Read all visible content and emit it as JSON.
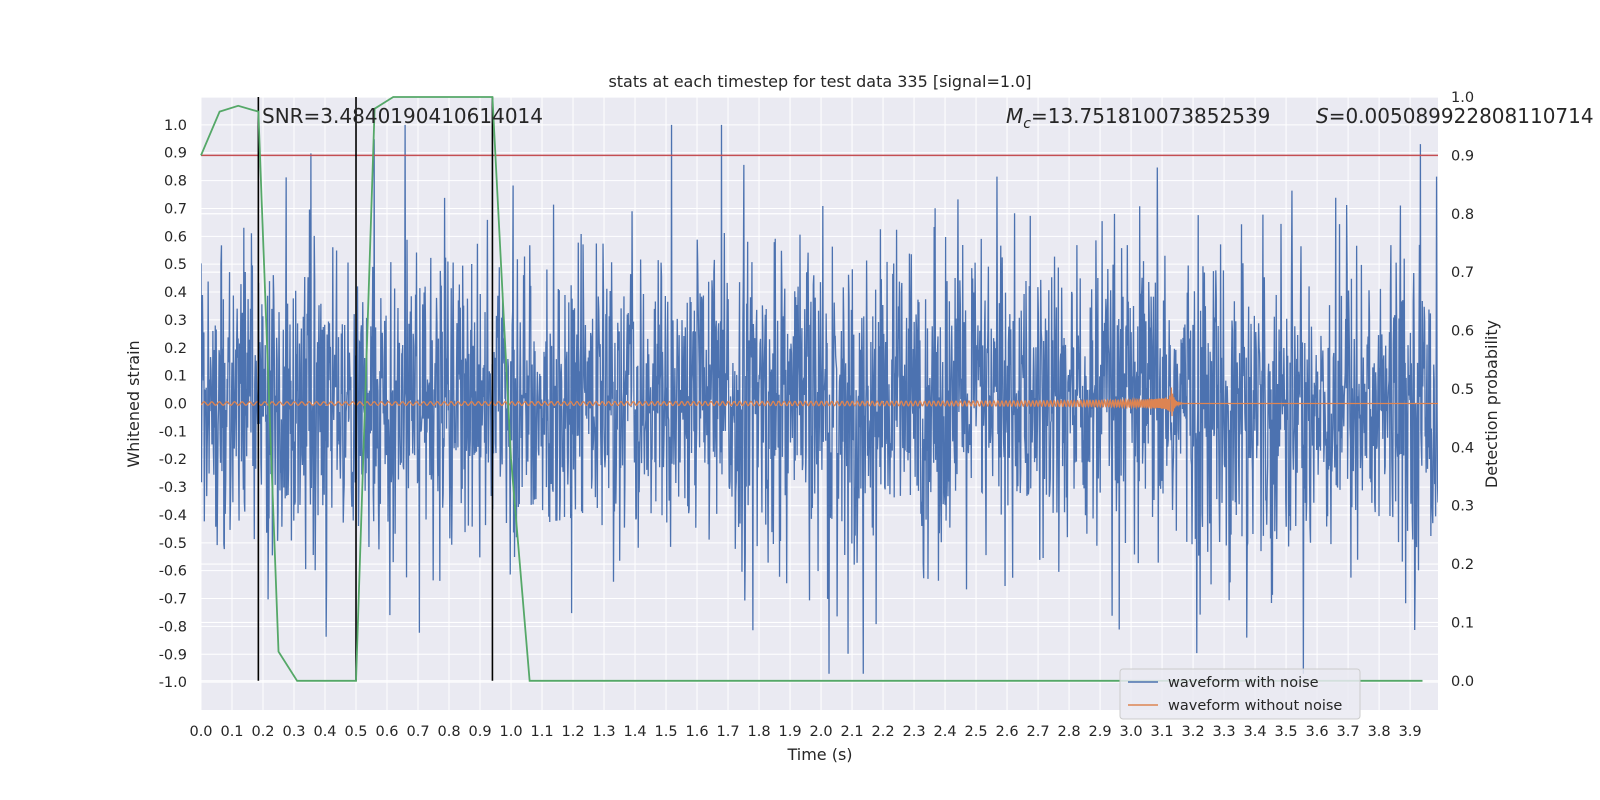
{
  "chart_data": {
    "type": "line",
    "title": "stats at each timestep for test data 335 [signal=1.0]",
    "xlabel": "Time (s)",
    "ylabel_left": "Whitened strain",
    "ylabel_right": "Detection probability",
    "xlim": [
      0.0,
      3.99
    ],
    "ylim_left": [
      -1.1,
      1.1
    ],
    "ylim_right": [
      -0.05,
      1.0
    ],
    "x_ticks": [
      "0.0",
      "0.1",
      "0.2",
      "0.3",
      "0.4",
      "0.5",
      "0.6",
      "0.7",
      "0.8",
      "0.9",
      "1.0",
      "1.1",
      "1.2",
      "1.3",
      "1.4",
      "1.5",
      "1.6",
      "1.7",
      "1.8",
      "1.9",
      "2.0",
      "2.1",
      "2.2",
      "2.3",
      "2.4",
      "2.5",
      "2.6",
      "2.7",
      "2.8",
      "2.9",
      "3.0",
      "3.1",
      "3.2",
      "3.3",
      "3.4",
      "3.5",
      "3.6",
      "3.7",
      "3.8",
      "3.9"
    ],
    "y_ticks_left": [
      "1.0",
      "0.9",
      "0.8",
      "0.7",
      "0.6",
      "0.5",
      "0.4",
      "0.3",
      "0.2",
      "0.1",
      "0.0",
      "-0.1",
      "-0.2",
      "-0.3",
      "-0.4",
      "-0.5",
      "-0.6",
      "-0.7",
      "-0.8",
      "-0.9",
      "-1.0"
    ],
    "y_ticks_right": [
      "1.0",
      "0.9",
      "0.8",
      "0.7",
      "0.6",
      "0.5",
      "0.4",
      "0.3",
      "0.2",
      "0.1",
      "0.0"
    ],
    "annotations": {
      "snr": "SNR=3.4840190410614014",
      "mc_symbol": "M",
      "mc_sub": "c",
      "mc_value": "=13.751810073852539",
      "s_symbol": "S",
      "s_value": "=0.005089922808110714"
    },
    "threshold": {
      "value": 0.9,
      "axis": "right",
      "color": "#c44e52"
    },
    "vertical_markers": {
      "x": [
        0.185,
        0.5,
        0.94
      ],
      "y_range_right": [
        0.0,
        1.0
      ],
      "color": "#000000"
    },
    "series": [
      {
        "name": "waveform with noise",
        "axis": "left",
        "color": "#4c72b0",
        "note_values": "dense noisy trace spanning roughly -0.97 to 1.0"
      },
      {
        "name": "waveform without noise",
        "axis": "left",
        "color": "#dd8452",
        "note_values": "chirp: small oscillation growing to peak near t=3.13 s"
      },
      {
        "axis": "right",
        "color": "#55a868",
        "x": [
          0.0,
          0.06,
          0.12,
          0.185,
          0.25,
          0.31,
          0.5,
          0.56,
          0.62,
          0.94,
          1.0,
          1.06,
          3.94
        ],
        "y": [
          0.9,
          0.975,
          0.985,
          0.975,
          0.05,
          0.0,
          0.0,
          0.98,
          1.0,
          1.0,
          0.38,
          0.0,
          0.0
        ]
      }
    ],
    "legend": {
      "placement": "lower-right",
      "entries": [
        {
          "label": "waveform with noise",
          "color": "#4c72b0"
        },
        {
          "label": "waveform without noise",
          "color": "#dd8452"
        }
      ]
    },
    "grid": true,
    "background": "#eaeaf2"
  }
}
